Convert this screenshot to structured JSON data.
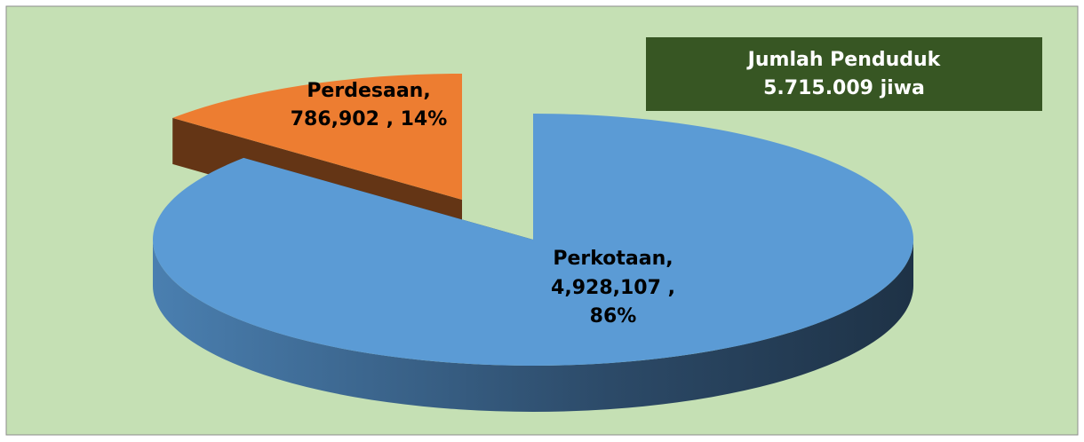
{
  "chart_data": {
    "type": "pie",
    "categories": [
      "Perkotaan",
      "Perdesaan"
    ],
    "values": [
      4928107,
      786902
    ],
    "value_labels": [
      [
        "Perkotaan,",
        "4,928,107 ,",
        "86%"
      ],
      [
        "Perdesaan,",
        "786,902 , 14%"
      ]
    ],
    "colors": [
      "#5b9bd5",
      "#ed7d31"
    ],
    "annotations": [
      "Jumlah Penduduk",
      "5.715.009 jiwa"
    ],
    "annotation_color": "#375623",
    "background": "#c5e0b4"
  }
}
